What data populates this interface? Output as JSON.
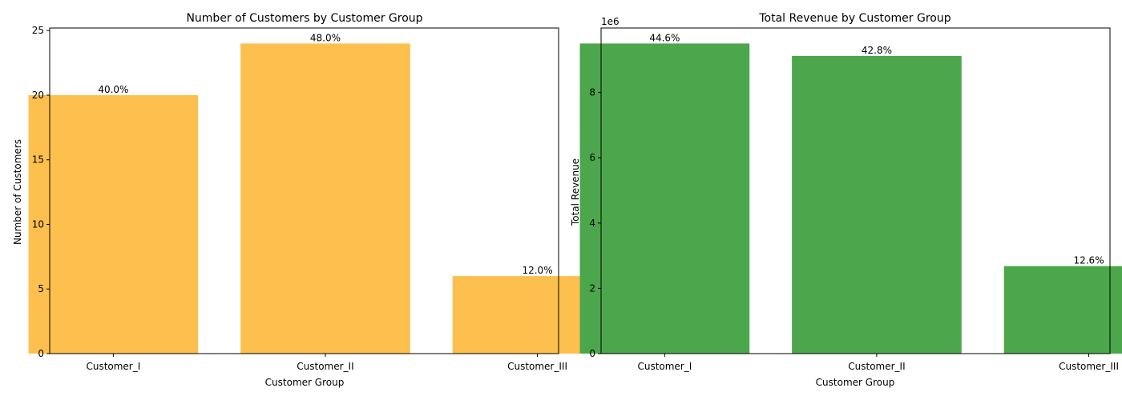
{
  "chart_data": [
    {
      "type": "bar",
      "title": "Number of Customers by Customer Group",
      "xlabel": "Customer Group",
      "ylabel": "Number of Customers",
      "categories": [
        "Customer_I",
        "Customer_II",
        "Customer_III"
      ],
      "values": [
        20,
        24,
        6
      ],
      "value_labels": [
        "40.0%",
        "48.0%",
        "12.0%"
      ],
      "ylim": [
        0,
        25.2
      ],
      "yticks": [
        0,
        5,
        10,
        15,
        20,
        25
      ],
      "ytick_labels": [
        "0",
        "5",
        "10",
        "15",
        "20",
        "25"
      ],
      "offset_text": "",
      "color": "#FDBF4E",
      "grid": false
    },
    {
      "type": "bar",
      "title": "Total Revenue by Customer Group",
      "xlabel": "Customer Group",
      "ylabel": "Total Revenue",
      "categories": [
        "Customer_I",
        "Customer_II",
        "Customer_III"
      ],
      "values": [
        9500000,
        9120000,
        2680000
      ],
      "value_labels": [
        "44.6%",
        "42.8%",
        "12.6%"
      ],
      "ylim": [
        0,
        9975000
      ],
      "yticks": [
        0,
        2000000,
        4000000,
        6000000,
        8000000
      ],
      "ytick_labels": [
        "0",
        "2",
        "4",
        "6",
        "8"
      ],
      "offset_text": "1e6",
      "color": "#4CA64C",
      "grid": false
    }
  ]
}
